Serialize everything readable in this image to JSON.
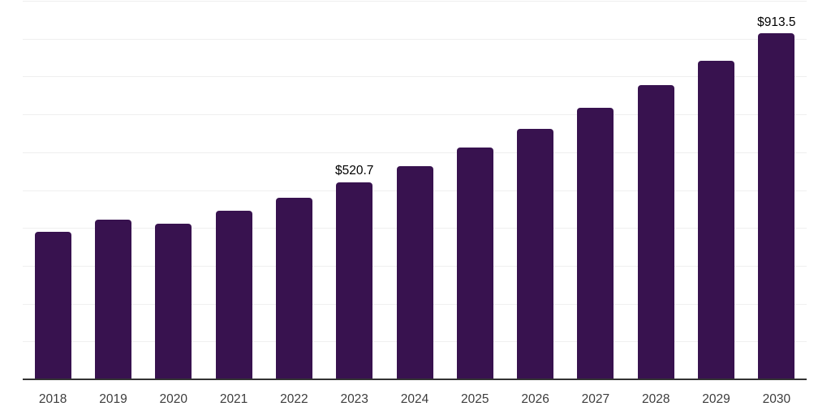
{
  "chart_data": {
    "type": "bar",
    "title": "",
    "xlabel": "",
    "ylabel": "",
    "categories": [
      "2018",
      "2019",
      "2020",
      "2021",
      "2022",
      "2023",
      "2024",
      "2025",
      "2026",
      "2027",
      "2028",
      "2029",
      "2030"
    ],
    "values": [
      390,
      421,
      411,
      446,
      480,
      520.7,
      564,
      612,
      662,
      717,
      777,
      842,
      913.5
    ],
    "data_labels": {
      "2023": "$520.7",
      "2030": "$913.5"
    },
    "ylim": [
      0,
      1000
    ],
    "grid_step": 100,
    "grid": "horizontal-only",
    "legend": "none",
    "y_axis_ticks_visible": false,
    "colors": {
      "bar": "#38124F",
      "gridline": "#efefef",
      "axis": "#333333",
      "tick_label": "#3d3d3d",
      "value_label": "#000000",
      "background": "#ffffff"
    }
  }
}
